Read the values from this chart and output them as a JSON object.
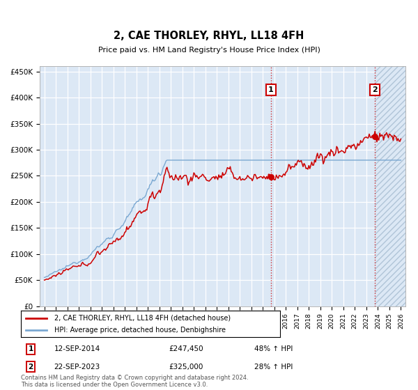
{
  "title": "2, CAE THORLEY, RHYL, LL18 4FH",
  "subtitle": "Price paid vs. HM Land Registry's House Price Index (HPI)",
  "ylim": [
    0,
    460000
  ],
  "yticks": [
    0,
    50000,
    100000,
    150000,
    200000,
    250000,
    300000,
    350000,
    400000,
    450000
  ],
  "ytick_labels": [
    "£0",
    "£50K",
    "£100K",
    "£150K",
    "£200K",
    "£250K",
    "£300K",
    "£350K",
    "£400K",
    "£450K"
  ],
  "legend_line1": "2, CAE THORLEY, RHYL, LL18 4FH (detached house)",
  "legend_line2": "HPI: Average price, detached house, Denbighshire",
  "marker1_date": "12-SEP-2014",
  "marker1_price": "£247,450",
  "marker1_hpi": "48% ↑ HPI",
  "marker1_year": 2014.708,
  "marker1_value": 247450,
  "marker2_date": "22-SEP-2023",
  "marker2_price": "£325,000",
  "marker2_hpi": "28% ↑ HPI",
  "marker2_year": 2023.708,
  "marker2_value": 325000,
  "footer": "Contains HM Land Registry data © Crown copyright and database right 2024.\nThis data is licensed under the Open Government Licence v3.0.",
  "line_color": "#cc0000",
  "hpi_color": "#7aa8d2",
  "bg_color": "#dce8f5",
  "hatch_bg": "#c8d8e8"
}
